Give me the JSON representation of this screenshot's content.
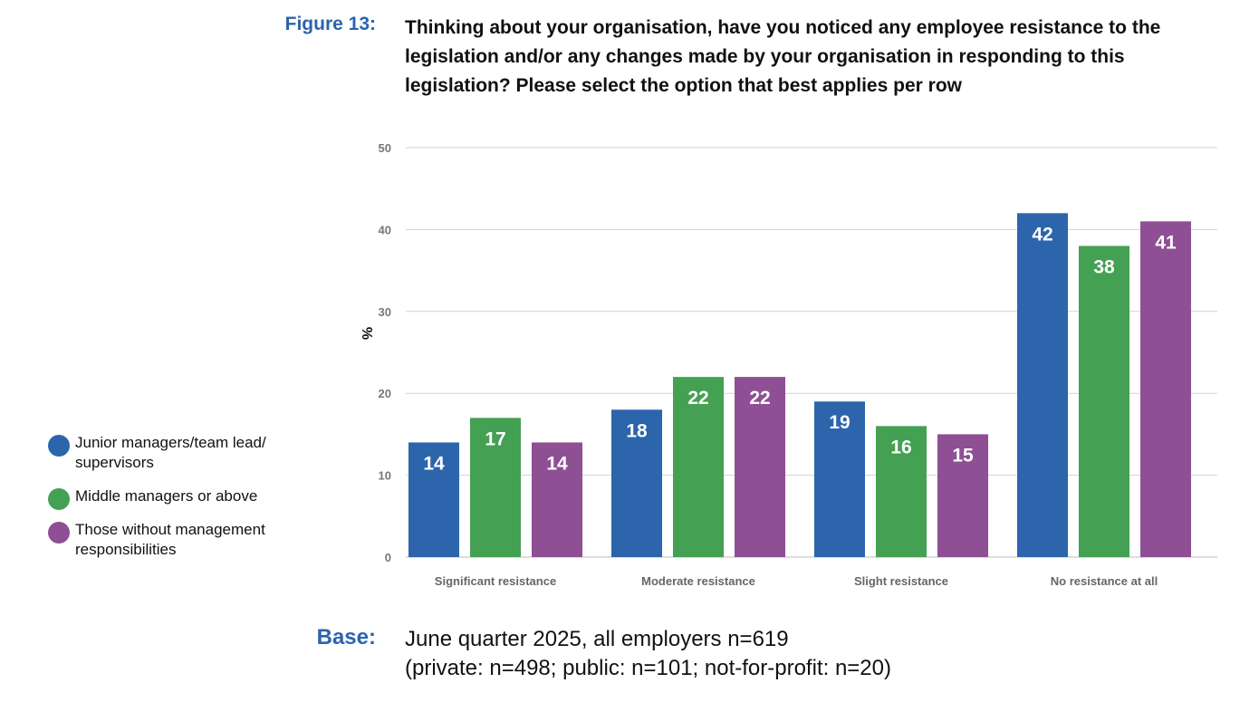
{
  "figure": {
    "label": "Figure 13:",
    "title": "Thinking about your organisation, have you noticed any employee resistance to the legislation and/or any changes made by your organisation in responding to this legislation? Please select the option that best applies per row"
  },
  "chart_data": {
    "type": "bar",
    "categories": [
      "Significant resistance",
      "Moderate resistance",
      "Slight resistance",
      "No resistance at all"
    ],
    "series": [
      {
        "name": "Junior managers/team lead/ supervisors",
        "color": "#2c65ac",
        "values": [
          14,
          18,
          19,
          42
        ]
      },
      {
        "name": "Middle managers or above",
        "color": "#44a052",
        "values": [
          17,
          22,
          16,
          38
        ]
      },
      {
        "name": "Those without management responsibilities",
        "color": "#8e4f94",
        "values": [
          14,
          22,
          15,
          41
        ]
      }
    ],
    "ylabel": "%",
    "ylim": [
      0,
      50
    ],
    "yticks": [
      0,
      10,
      20,
      30,
      40,
      50
    ],
    "grid": true,
    "legend_position": "left",
    "data_labels": true
  },
  "legend": {
    "items": [
      {
        "label": "Junior managers/team lead/ supervisors",
        "color": "#2c65ac"
      },
      {
        "label": "Middle managers or above",
        "color": "#44a052"
      },
      {
        "label": "Those without management responsibilities",
        "color": "#8e4f94"
      }
    ]
  },
  "base": {
    "label": "Base:",
    "line1": "June quarter 2025, all employers n=619",
    "line2": "(private: n=498; public: n=101; not-for-profit: n=20)"
  }
}
